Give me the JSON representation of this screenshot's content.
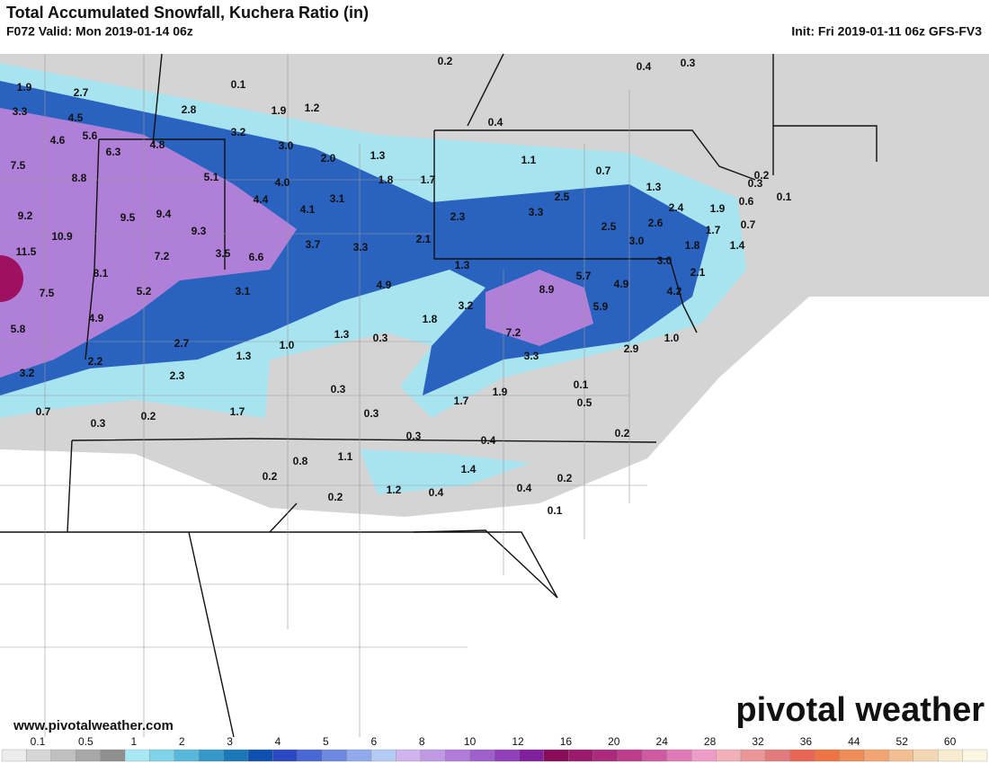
{
  "header": {
    "title": "Total Accumulated Snowfall, Kuchera Ratio (in)",
    "valid": "F072 Valid: Mon 2019-01-14 06z",
    "init": "Init: Fri 2019-01-11 06z GFS-FV3"
  },
  "footer": {
    "website": "www.pivotalweather.com",
    "brand": "pivotal weather"
  },
  "colorbar": {
    "labels": [
      "0.1",
      "0.5",
      "1",
      "2",
      "3",
      "4",
      "5",
      "6",
      "8",
      "10",
      "12",
      "16",
      "20",
      "24",
      "28",
      "32",
      "36",
      "44",
      "52",
      "60"
    ]
  },
  "map_labels": [
    "1.9",
    "2.7",
    "0.1",
    "0.2",
    "0.4",
    "0.3",
    "3.3",
    "4.5",
    "2.8",
    "1.9",
    "1.2",
    "0.4",
    "4.6",
    "5.6",
    "6.3",
    "4.8",
    "3.2",
    "3.0",
    "2.0",
    "1.3",
    "1.1",
    "0.7",
    "7.5",
    "8.8",
    "5.1",
    "4.0",
    "1.8",
    "1.7",
    "1.3",
    "0.2",
    "0.3",
    "0.1",
    "9.2",
    "10.9",
    "9.5",
    "9.4",
    "4.4",
    "4.1",
    "3.1",
    "2.5",
    "3.3",
    "2.3",
    "2.4",
    "1.9",
    "0.6",
    "9.3",
    "2.1",
    "2.6",
    "2.5",
    "3.0",
    "0.7",
    "11.5",
    "7.2",
    "3.5",
    "6.6",
    "3.7",
    "3.3",
    "1.7",
    "1.8",
    "1.4",
    "1.3",
    "3.0",
    "8.1",
    "2.1",
    "5.7",
    "7.5",
    "5.2",
    "3.1",
    "4.9",
    "8.9",
    "4.9",
    "4.2",
    "3.2",
    "5.9",
    "5.8",
    "4.9",
    "1.8",
    "1.3",
    "0.3",
    "1.0",
    "7.2",
    "2.7",
    "1.0",
    "2.9",
    "1.3",
    "3.3",
    "2.2",
    "3.2",
    "2.3",
    "0.1",
    "0.3",
    "1.9",
    "1.7",
    "0.5",
    "0.7",
    "1.7",
    "0.3",
    "0.3",
    "0.2",
    "0.3",
    "0.4",
    "0.2",
    "1.1",
    "0.8",
    "1.4",
    "0.2",
    "0.2",
    "1.2",
    "0.4",
    "0.4",
    "0.2",
    "0.1"
  ]
}
